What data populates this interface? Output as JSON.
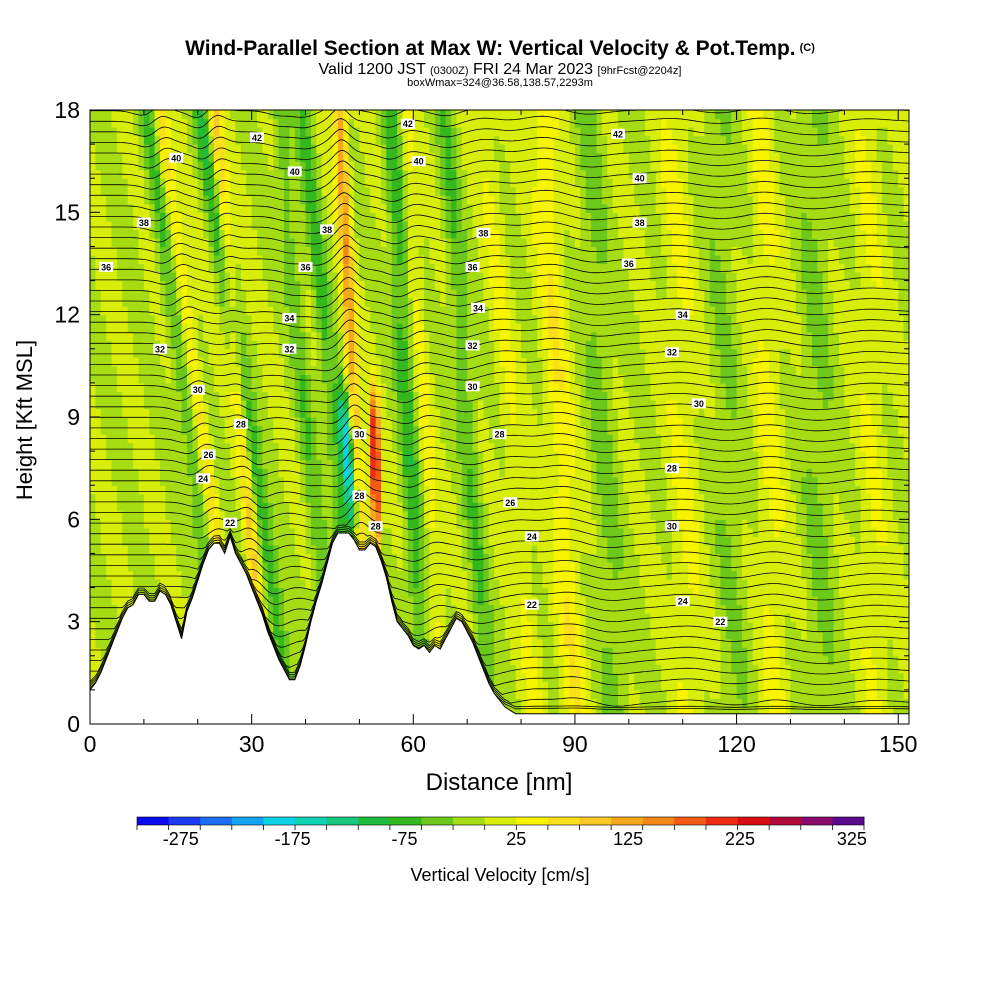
{
  "chart_data": {
    "type": "heatmap",
    "title": "Wind-Parallel Section at Max W: Vertical Velocity & Pot.Temp.",
    "title_mark": "(C)",
    "subtitle_valid": "Valid 1200 JST",
    "subtitle_utc": "(0300Z)",
    "subtitle_date": "FRI 24 Mar 2023",
    "subtitle_fcst": "[9hrFcst@2204z]",
    "box_info": "boxWmax=324@36.58,138.57,2293m",
    "xlabel": "Distance [nm]",
    "ylabel": "Height [Kft MSL]",
    "xlim": [
      0,
      152
    ],
    "ylim": [
      0,
      18
    ],
    "x_ticks": [
      "0",
      "30",
      "60",
      "90",
      "120",
      "150"
    ],
    "y_ticks": [
      "0",
      "3",
      "6",
      "9",
      "12",
      "15",
      "18"
    ],
    "colorbar_label": "Vertical Velocity [cm/s]",
    "colorbar_ticks": [
      "-275",
      "-175",
      "-75",
      "25",
      "125",
      "225",
      "325"
    ],
    "colorbar_range": [
      -300,
      350
    ],
    "colorbar_colors": [
      "#0a0aef",
      "#1a3af0",
      "#1c6ff2",
      "#14a3f2",
      "#10d2e6",
      "#12d2b4",
      "#18c87e",
      "#20bc3e",
      "#33b81e",
      "#6cc81a",
      "#a6dc14",
      "#d8ee0a",
      "#f8f400",
      "#fae01a",
      "#f8c826",
      "#f6a81c",
      "#f4861a",
      "#f25a16",
      "#ee2c14",
      "#d80e14",
      "#b00a3a",
      "#8a0a6e",
      "#5a0a8c"
    ],
    "terrain_profile": {
      "x": [
        0,
        1,
        2,
        3,
        4,
        5,
        6,
        7,
        8,
        9,
        10,
        11,
        12,
        13,
        14,
        15,
        16,
        17,
        18,
        19,
        20,
        21,
        22,
        23,
        24,
        25,
        26,
        27,
        28,
        29,
        30,
        31,
        32,
        33,
        34,
        35,
        36,
        37,
        38,
        39,
        40,
        41,
        42,
        43,
        44,
        45,
        46,
        47,
        48,
        49,
        50,
        51,
        52,
        53,
        54,
        55,
        56,
        57,
        58,
        59,
        60,
        61,
        62,
        63,
        64,
        65,
        66,
        67,
        68,
        69,
        70,
        71,
        72,
        73,
        74,
        75,
        76,
        77,
        78,
        79,
        80,
        152
      ],
      "height_kft": [
        1,
        1.2,
        1.5,
        1.9,
        2.3,
        2.7,
        3.1,
        3.4,
        3.5,
        3.8,
        3.8,
        3.6,
        3.6,
        3.9,
        3.8,
        3.5,
        3.0,
        2.5,
        3.3,
        3.7,
        4.2,
        4.7,
        5.1,
        5.3,
        5.3,
        5.0,
        5.5,
        5.0,
        4.7,
        4.4,
        4.0,
        3.6,
        3.2,
        2.7,
        2.3,
        1.9,
        1.6,
        1.3,
        1.3,
        1.7,
        2.3,
        3.0,
        3.6,
        4.1,
        4.7,
        5.3,
        5.6,
        5.6,
        5.6,
        5.4,
        5.1,
        5.1,
        5.3,
        5.2,
        4.8,
        4.3,
        3.6,
        3.0,
        2.8,
        2.6,
        2.3,
        2.2,
        2.3,
        2.1,
        2.3,
        2.2,
        2.5,
        2.8,
        3.1,
        3.0,
        2.7,
        2.4,
        2.0,
        1.6,
        1.2,
        0.9,
        0.7,
        0.5,
        0.4,
        0.3,
        0.3,
        0.3
      ]
    },
    "isentrope_labels": [
      {
        "text": "40",
        "x": 16,
        "y": 16.6
      },
      {
        "text": "42",
        "x": 31,
        "y": 17.2
      },
      {
        "text": "40",
        "x": 38,
        "y": 16.2
      },
      {
        "text": "38",
        "x": 10,
        "y": 14.7
      },
      {
        "text": "38",
        "x": 44,
        "y": 14.5
      },
      {
        "text": "36",
        "x": 3,
        "y": 13.4
      },
      {
        "text": "36",
        "x": 40,
        "y": 13.4
      },
      {
        "text": "34",
        "x": 37,
        "y": 11.9
      },
      {
        "text": "32",
        "x": 13,
        "y": 11.0
      },
      {
        "text": "32",
        "x": 37,
        "y": 11.0
      },
      {
        "text": "30",
        "x": 20,
        "y": 9.8
      },
      {
        "text": "28",
        "x": 28,
        "y": 8.8
      },
      {
        "text": "26",
        "x": 22,
        "y": 7.9
      },
      {
        "text": "24",
        "x": 21,
        "y": 7.2
      },
      {
        "text": "22",
        "x": 26,
        "y": 5.9
      },
      {
        "text": "30",
        "x": 50,
        "y": 8.5
      },
      {
        "text": "28",
        "x": 50,
        "y": 6.7
      },
      {
        "text": "28",
        "x": 53,
        "y": 5.8
      },
      {
        "text": "42",
        "x": 59,
        "y": 17.6
      },
      {
        "text": "40",
        "x": 61,
        "y": 16.5
      },
      {
        "text": "38",
        "x": 73,
        "y": 14.4
      },
      {
        "text": "36",
        "x": 71,
        "y": 13.4
      },
      {
        "text": "34",
        "x": 72,
        "y": 12.2
      },
      {
        "text": "32",
        "x": 71,
        "y": 11.1
      },
      {
        "text": "30",
        "x": 71,
        "y": 9.9
      },
      {
        "text": "28",
        "x": 76,
        "y": 8.5
      },
      {
        "text": "26",
        "x": 78,
        "y": 6.5
      },
      {
        "text": "24",
        "x": 82,
        "y": 5.5
      },
      {
        "text": "22",
        "x": 82,
        "y": 3.5
      },
      {
        "text": "42",
        "x": 98,
        "y": 17.3
      },
      {
        "text": "40",
        "x": 102,
        "y": 16.0
      },
      {
        "text": "38",
        "x": 102,
        "y": 14.7
      },
      {
        "text": "36",
        "x": 100,
        "y": 13.5
      },
      {
        "text": "34",
        "x": 110,
        "y": 12.0
      },
      {
        "text": "32",
        "x": 108,
        "y": 10.9
      },
      {
        "text": "30",
        "x": 113,
        "y": 9.4
      },
      {
        "text": "28",
        "x": 108,
        "y": 7.5
      },
      {
        "text": "30",
        "x": 108,
        "y": 5.8
      },
      {
        "text": "24",
        "x": 110,
        "y": 3.6
      },
      {
        "text": "22",
        "x": 117,
        "y": 3.0
      }
    ],
    "grid": false
  }
}
